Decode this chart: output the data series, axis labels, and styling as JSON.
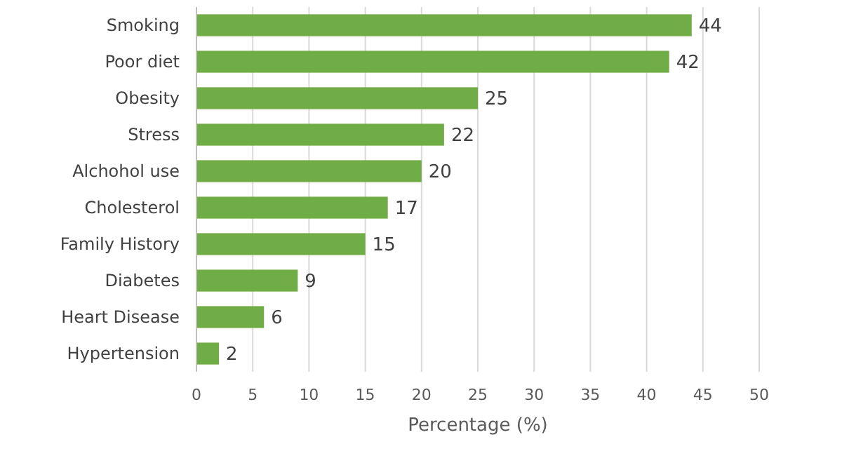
{
  "chart_data": {
    "type": "bar",
    "orientation": "horizontal",
    "categories": [
      "Smoking",
      "Poor diet",
      "Obesity",
      "Stress",
      "Alchohol use",
      "Cholesterol",
      "Family History",
      "Diabetes",
      "Heart Disease",
      "Hypertension"
    ],
    "values": [
      44,
      42,
      25,
      22,
      20,
      17,
      15,
      9,
      6,
      2
    ],
    "color": "#70ad47",
    "xlabel": "Percentage (%)",
    "xlim": [
      0,
      50
    ],
    "xticks": [
      0,
      5,
      10,
      15,
      20,
      25,
      30,
      35,
      40,
      45,
      50
    ],
    "grid": "x",
    "data_labels": true
  }
}
